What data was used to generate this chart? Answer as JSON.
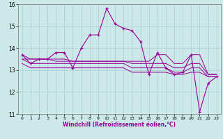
{
  "xlabel": "Windchill (Refroidissement éolien,°C)",
  "x": [
    0,
    1,
    2,
    3,
    4,
    5,
    6,
    7,
    8,
    9,
    10,
    11,
    12,
    13,
    14,
    15,
    16,
    17,
    18,
    19,
    20,
    21,
    22,
    23
  ],
  "main_line": [
    13.7,
    13.3,
    13.5,
    13.5,
    13.8,
    13.8,
    13.1,
    14.0,
    14.6,
    14.6,
    15.8,
    15.1,
    14.9,
    14.8,
    14.3,
    12.8,
    13.8,
    13.1,
    12.8,
    12.9,
    13.7,
    11.1,
    12.4,
    12.7
  ],
  "flat_lines": [
    [
      13.7,
      13.5,
      13.5,
      13.5,
      13.5,
      13.5,
      13.4,
      13.4,
      13.4,
      13.4,
      13.4,
      13.4,
      13.4,
      13.4,
      13.4,
      13.4,
      13.7,
      13.7,
      13.3,
      13.3,
      13.7,
      13.7,
      12.8,
      12.8
    ],
    [
      13.5,
      13.5,
      13.5,
      13.5,
      13.4,
      13.4,
      13.4,
      13.4,
      13.4,
      13.4,
      13.4,
      13.4,
      13.4,
      13.3,
      13.3,
      13.3,
      13.3,
      13.3,
      13.1,
      13.1,
      13.3,
      13.3,
      12.8,
      12.8
    ],
    [
      13.5,
      13.3,
      13.3,
      13.3,
      13.3,
      13.3,
      13.3,
      13.3,
      13.3,
      13.3,
      13.3,
      13.3,
      13.3,
      13.1,
      13.1,
      13.1,
      13.1,
      13.1,
      12.9,
      12.9,
      13.1,
      13.1,
      12.7,
      12.7
    ],
    [
      13.3,
      13.1,
      13.1,
      13.1,
      13.1,
      13.1,
      13.1,
      13.1,
      13.1,
      13.1,
      13.1,
      13.1,
      13.1,
      12.9,
      12.9,
      12.9,
      12.9,
      12.9,
      12.8,
      12.8,
      12.9,
      12.9,
      12.7,
      12.7
    ]
  ],
  "line_color": "#990099",
  "bg_color": "#cce8e8",
  "grid_color": "#aad4d4",
  "ylim": [
    11,
    16
  ],
  "yticks": [
    11,
    12,
    13,
    14,
    15,
    16
  ],
  "xticks": [
    0,
    1,
    2,
    3,
    4,
    5,
    6,
    7,
    8,
    9,
    10,
    11,
    12,
    13,
    14,
    15,
    16,
    17,
    18,
    19,
    20,
    21,
    22,
    23
  ]
}
